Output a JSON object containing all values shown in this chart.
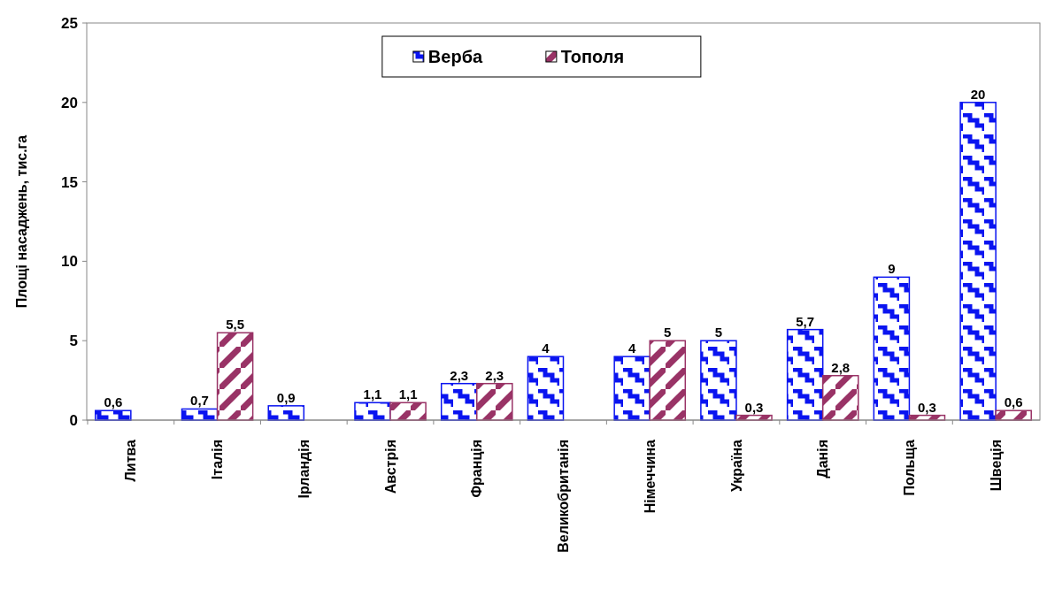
{
  "chart_data": {
    "type": "bar",
    "ylabel": "Площі насаджень, тис.га",
    "categories": [
      "Литва",
      "Італія",
      "Ірландія",
      "Австрія",
      "Франція",
      "Великобританія",
      "Німеччина",
      "Україна",
      "Данія",
      "Польща",
      "Швеція"
    ],
    "series": [
      {
        "name": "Верба",
        "color": "#0a14f0",
        "values": [
          0.6,
          0.7,
          0.9,
          1.1,
          2.3,
          4,
          4,
          5,
          5.7,
          9,
          20
        ],
        "value_labels": [
          "0,6",
          "0,7",
          "0,9",
          "1,1",
          "2,3",
          "4",
          "4",
          "5",
          "5,7",
          "9",
          "20"
        ]
      },
      {
        "name": "Тополя",
        "color": "#993366",
        "values": [
          null,
          5.5,
          null,
          1.1,
          2.3,
          null,
          5,
          0.3,
          2.8,
          0.3,
          0.6
        ],
        "value_labels": [
          null,
          "5,5",
          null,
          "1,1",
          "2,3",
          null,
          "5",
          "0,3",
          "2,8",
          "0,3",
          "0,6"
        ]
      }
    ],
    "ylim": [
      0,
      25
    ],
    "yticks": [
      0,
      5,
      10,
      15,
      20,
      25
    ],
    "grid": false,
    "legend": "top"
  }
}
